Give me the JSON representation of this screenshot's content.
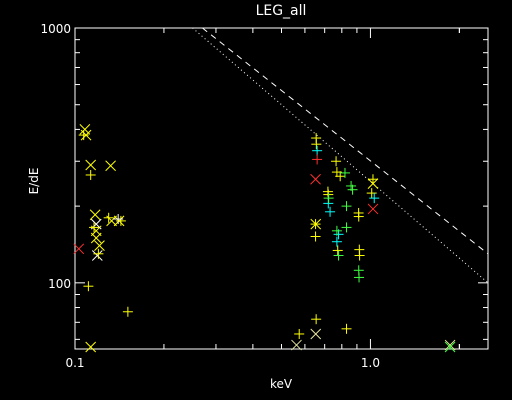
{
  "chart_data": {
    "type": "scatter",
    "title": "LEG_all",
    "xlabel": "keV",
    "ylabel": "E/dE",
    "xscale": "log",
    "yscale": "log",
    "xlim": [
      0.1,
      2.5
    ],
    "ylim": [
      55,
      1000
    ],
    "x_ticks": [
      {
        "value": 0.1,
        "label": "0.1"
      },
      {
        "value": 1.0,
        "label": "1.0"
      }
    ],
    "y_ticks": [
      {
        "value": 100,
        "label": "100"
      },
      {
        "value": 1000,
        "label": "1000"
      }
    ],
    "grid": false,
    "legend": "none",
    "lines": [
      {
        "style": "dashed",
        "points": [
          [
            0.27,
            1000
          ],
          [
            2.5,
            130
          ]
        ]
      },
      {
        "style": "dotted",
        "points": [
          [
            0.25,
            1000
          ],
          [
            2.5,
            100
          ]
        ]
      }
    ],
    "series": [
      {
        "marker": "x",
        "color": "#ffff00",
        "points": [
          [
            0.108,
            400
          ],
          [
            0.113,
            290
          ],
          [
            0.117,
            185
          ],
          [
            0.118,
            160
          ],
          [
            0.121,
            140
          ],
          [
            0.133,
            175
          ],
          [
            0.141,
            175
          ],
          [
            0.113,
            56
          ],
          [
            0.653,
            170
          ],
          [
            1.02,
            245
          ],
          [
            0.132,
            288
          ],
          [
            0.109,
            380
          ],
          [
            0.118,
            150
          ]
        ]
      },
      {
        "marker": "x",
        "color": "#ffffff",
        "points": [
          [
            0.118,
            170
          ],
          [
            0.119,
            128
          ]
        ]
      },
      {
        "marker": "x",
        "color": "#ff3030",
        "points": [
          [
            0.652,
            255
          ],
          [
            1.02,
            195
          ],
          [
            0.103,
            136
          ]
        ]
      },
      {
        "marker": "x",
        "color": "#e8e8a0",
        "points": [
          [
            0.653,
            63
          ],
          [
            0.562,
            57
          ],
          [
            1.86,
            57
          ]
        ]
      },
      {
        "marker": "x",
        "color": "#40ff40",
        "points": [
          [
            1.86,
            56
          ]
        ]
      },
      {
        "marker": "+",
        "color": "#ffff00",
        "points": [
          [
            0.107,
            380
          ],
          [
            0.113,
            265
          ],
          [
            0.116,
            165
          ],
          [
            0.12,
            130
          ],
          [
            0.13,
            180
          ],
          [
            0.143,
            175
          ],
          [
            0.111,
            97
          ],
          [
            0.151,
            77
          ],
          [
            0.655,
            370
          ],
          [
            0.656,
            350
          ],
          [
            0.652,
            170
          ],
          [
            0.652,
            152
          ],
          [
            0.655,
            72
          ],
          [
            0.574,
            63
          ],
          [
            0.718,
            228
          ],
          [
            0.72,
            222
          ],
          [
            0.765,
            300
          ],
          [
            0.77,
            272
          ],
          [
            0.79,
            262
          ],
          [
            0.775,
            134
          ],
          [
            0.83,
            66
          ],
          [
            0.912,
            188
          ],
          [
            0.913,
            182
          ],
          [
            0.917,
            135
          ],
          [
            0.919,
            128
          ],
          [
            1.02,
            255
          ],
          [
            1.01,
            225
          ]
        ]
      },
      {
        "marker": "+",
        "color": "#ffffff",
        "points": [
          [
            0.14,
            178
          ]
        ]
      },
      {
        "marker": "+",
        "color": "#00ffff",
        "points": [
          [
            0.66,
            330
          ],
          [
            0.72,
            205
          ],
          [
            0.73,
            190
          ],
          [
            0.78,
            155
          ],
          [
            0.77,
            145
          ],
          [
            1.03,
            215
          ]
        ]
      },
      {
        "marker": "+",
        "color": "#ff3030",
        "points": [
          [
            0.66,
            305
          ]
        ]
      },
      {
        "marker": "+",
        "color": "#40ff40",
        "points": [
          [
            0.722,
            215
          ],
          [
            0.77,
            160
          ],
          [
            0.78,
            128
          ],
          [
            0.82,
            270
          ],
          [
            0.83,
            200
          ],
          [
            0.83,
            165
          ],
          [
            0.86,
            240
          ],
          [
            0.87,
            232
          ],
          [
            0.913,
            112
          ],
          [
            0.915,
            105
          ]
        ]
      }
    ]
  }
}
